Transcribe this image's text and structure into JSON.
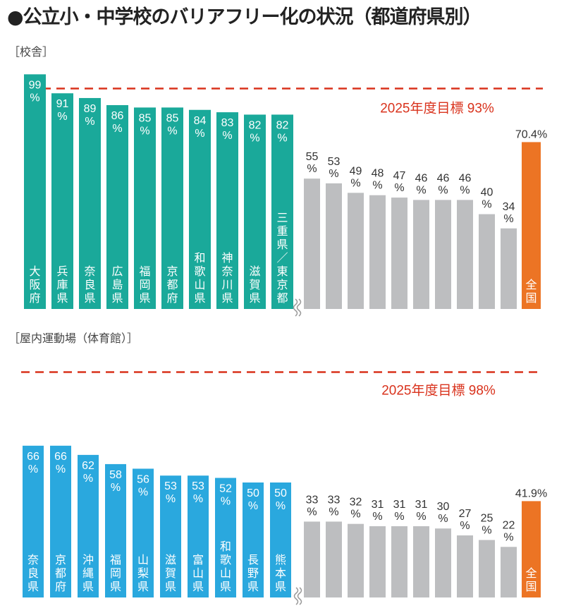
{
  "title": "●公立小・中学校のバリアフリー化の状況（都道府県別）",
  "chart_data": [
    {
      "type": "bar",
      "name": "校舎",
      "section_label": "［校舎］",
      "target_label": "2025年度目標 93%",
      "target_value": 93,
      "unit": "%",
      "top_categories": [
        "大阪府",
        "兵庫県",
        "奈良県",
        "広島県",
        "福岡県",
        "京都府",
        "和歌山県",
        "神奈川県",
        "滋賀県",
        "三重県／東京都"
      ],
      "top_values": [
        99,
        91,
        89,
        86,
        85,
        85,
        84,
        83,
        82,
        82
      ],
      "top_value_labels": [
        "99%",
        "91%",
        "89%",
        "86%",
        "85%",
        "85%",
        "84%",
        "83%",
        "82%",
        "82%"
      ],
      "bottom_values": [
        55,
        53,
        49,
        48,
        47,
        46,
        46,
        46,
        40,
        34
      ],
      "bottom_value_labels": [
        "55%",
        "53%",
        "49%",
        "48%",
        "47%",
        "46%",
        "46%",
        "46%",
        "40%",
        "34%"
      ],
      "national": {
        "label": "全国",
        "value": 70.4,
        "value_label": "70.4%"
      },
      "colors": {
        "top": "#1aa99a",
        "bottom": "#bdbec0",
        "national": "#ec7424",
        "target": "#d9321c"
      }
    },
    {
      "type": "bar",
      "name": "屋内運動場（体育館）",
      "section_label": "［屋内運動場（体育館）］",
      "target_label": "2025年度目標 98%",
      "target_value": 98,
      "unit": "%",
      "top_categories": [
        "奈良県",
        "京都府",
        "沖縄県",
        "福岡県",
        "山梨県",
        "滋賀県",
        "富山県",
        "和歌山県",
        "長野県",
        "熊本県"
      ],
      "top_values": [
        66,
        66,
        62,
        58,
        56,
        53,
        53,
        52,
        50,
        50
      ],
      "top_value_labels": [
        "66%",
        "66%",
        "62%",
        "58%",
        "56%",
        "53%",
        "53%",
        "52%",
        "50%",
        "50%"
      ],
      "bottom_values": [
        33,
        33,
        32,
        31,
        31,
        31,
        30,
        27,
        25,
        22
      ],
      "bottom_value_labels": [
        "33%",
        "33%",
        "32%",
        "31%",
        "31%",
        "31%",
        "30%",
        "27%",
        "25%",
        "22%"
      ],
      "national": {
        "label": "全国",
        "value": 41.9,
        "value_label": "41.9%"
      },
      "colors": {
        "top": "#2aa8de",
        "bottom": "#bdbec0",
        "national": "#ec7424",
        "target": "#d9321c"
      }
    }
  ]
}
